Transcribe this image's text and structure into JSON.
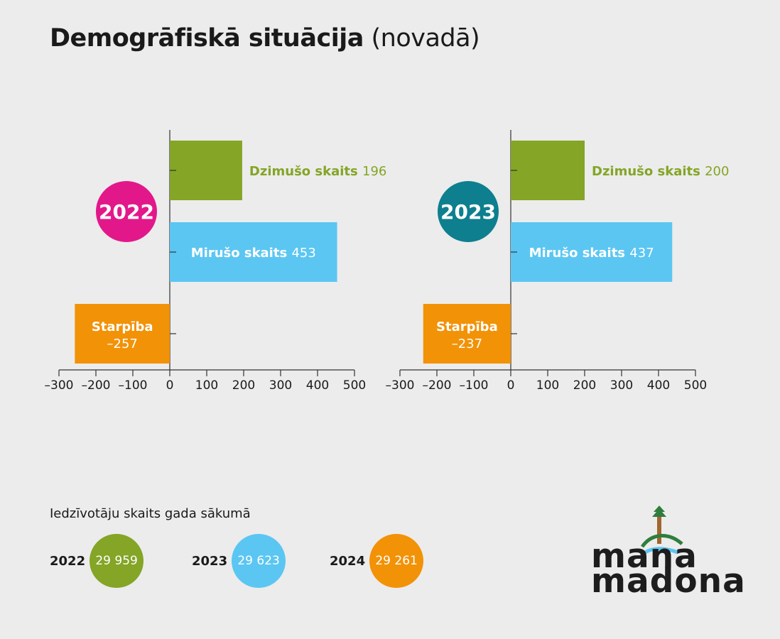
{
  "title": {
    "bold": "Demogrāfiskā situācija",
    "light": "(novadā)"
  },
  "colors": {
    "births": "#84a526",
    "deaths": "#5bc6f2",
    "difference": "#f29207",
    "badge_2022": "#e2188a",
    "badge_2023": "#0e7f8f",
    "axis": "#333333",
    "background": "#ececec"
  },
  "chart_data": [
    {
      "type": "bar",
      "orientation": "horizontal",
      "year_badge": "2022",
      "categories": [
        "Dzimušo skaits",
        "Mirušo skaits",
        "Starpība"
      ],
      "values": [
        196,
        453,
        -257
      ],
      "value_labels": [
        "196",
        "453",
        "–257"
      ],
      "xlim": [
        -300,
        500
      ],
      "xticks": [
        -300,
        -200,
        -100,
        0,
        100,
        200,
        300,
        400,
        500
      ],
      "xtick_labels": [
        "–300",
        "–200",
        "–100",
        "0",
        "100",
        "200",
        "300",
        "400",
        "500"
      ],
      "grid": false
    },
    {
      "type": "bar",
      "orientation": "horizontal",
      "year_badge": "2023",
      "categories": [
        "Dzimušo skaits",
        "Mirušo skaits",
        "Starpība"
      ],
      "values": [
        200,
        437,
        -237
      ],
      "value_labels": [
        "200",
        "437",
        "–237"
      ],
      "xlim": [
        -300,
        500
      ],
      "xticks": [
        -300,
        -200,
        -100,
        0,
        100,
        200,
        300,
        400,
        500
      ],
      "xtick_labels": [
        "–300",
        "–200",
        "–100",
        "0",
        "100",
        "200",
        "300",
        "400",
        "500"
      ],
      "grid": false
    }
  ],
  "population": {
    "label": "Iedzīvotāju skaits gada sākumā",
    "items": [
      {
        "year": "2022",
        "value": "29 959",
        "color": "#84a526"
      },
      {
        "year": "2023",
        "value": "29 623",
        "color": "#5bc6f2"
      },
      {
        "year": "2024",
        "value": "29 261",
        "color": "#f29207"
      }
    ]
  },
  "logo": {
    "line1": "mana",
    "line2": "madona"
  }
}
